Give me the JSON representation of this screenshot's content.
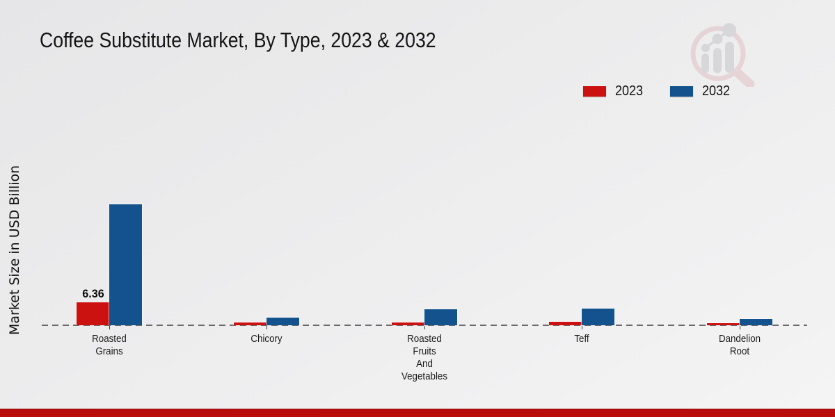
{
  "page": {
    "title": "Coffee Substitute Market, By Type, 2023 & 2032",
    "y_axis_label": "Market Size in USD Billion"
  },
  "legend": {
    "items": [
      {
        "label": "2023",
        "color": "#cc1111"
      },
      {
        "label": "2032",
        "color": "#13528c"
      }
    ]
  },
  "chart_data": {
    "type": "bar",
    "title": "Coffee Substitute Market, By Type, 2023 & 2032",
    "xlabel": "",
    "ylabel": "Market Size in USD Billion",
    "categories": [
      "Roasted\nGrains",
      "Chicory",
      "Roasted\nFruits\nAnd\nVegetables",
      "Teff",
      "Dandelion\nRoot"
    ],
    "series": [
      {
        "name": "2023",
        "color": "#cc1111",
        "values": [
          6.36,
          0.7,
          0.8,
          0.95,
          0.55
        ]
      },
      {
        "name": "2032",
        "color": "#13528c",
        "values": [
          33.5,
          2.2,
          4.4,
          4.6,
          1.75
        ]
      }
    ],
    "value_labels": [
      {
        "series_index": 0,
        "category_index": 0,
        "text": "6.36"
      }
    ],
    "ylim": [
      0,
      36
    ],
    "gridlines": false,
    "baseline_style": "dashed",
    "legend_position": "top-right"
  },
  "branding": {
    "logo_name": "market-research-magnifier-bar-logo",
    "footer_bar_color": "#b90d0d",
    "logo_ring_color": "#e2bfc5",
    "logo_bar_color": "#c6c6ca"
  }
}
